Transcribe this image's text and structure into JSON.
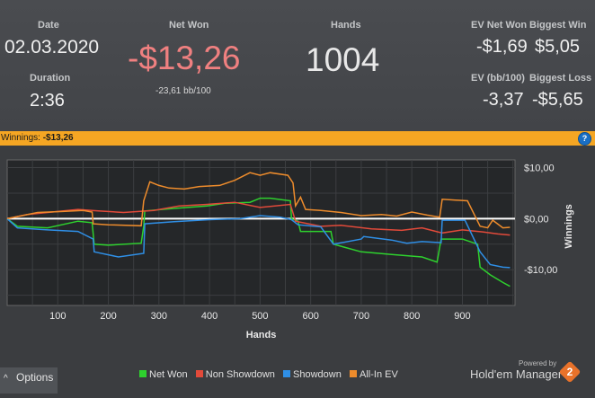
{
  "stats": {
    "date": {
      "label": "Date",
      "value": "02.03.2020"
    },
    "duration": {
      "label": "Duration",
      "value": "2:36"
    },
    "net_won": {
      "label": "Net Won",
      "value": "-$13,26",
      "sub": "-23,61 bb/100"
    },
    "hands": {
      "label": "Hands",
      "value": "1004"
    },
    "ev_net_won": {
      "label": "EV Net Won",
      "value": "-$1,69"
    },
    "biggest_win": {
      "label": "Biggest Win",
      "value": "$5,05"
    },
    "ev_bb100": {
      "label": "EV (bb/100)",
      "value": "-3,37"
    },
    "biggest_loss": {
      "label": "Biggest Loss",
      "value": "-$5,65"
    }
  },
  "winnings_bar": {
    "label": "Winnings:",
    "value": "-$13,26",
    "help": "?"
  },
  "options_label": "Options",
  "options_arrow": "^",
  "branding": {
    "powered": "Powered by",
    "name": "Hold'em Manager",
    "version": "2"
  },
  "colors": {
    "net_won": "#2ed12e",
    "non_showdown": "#e24a3a",
    "showdown": "#2f8fe6",
    "allin_ev": "#ee8c2c",
    "loss": "#f08080",
    "accent": "#f5a623"
  },
  "chart_data": {
    "type": "line",
    "title": "",
    "xlabel": "Hands",
    "ylabel": "Winnings",
    "xlim": [
      0,
      1004
    ],
    "ylim": [
      -17,
      11.5
    ],
    "xticks": [
      100,
      200,
      300,
      400,
      500,
      600,
      700,
      800,
      900
    ],
    "yticks": [
      {
        "v": 10,
        "label": "$10,00"
      },
      {
        "v": 0,
        "label": "$0,00"
      },
      {
        "v": -10,
        "label": "-$10,00"
      }
    ],
    "grid": true,
    "series": [
      {
        "name": "Net Won",
        "color": "#2ed12e",
        "points": [
          [
            0,
            0
          ],
          [
            20,
            -1.5
          ],
          [
            80,
            -1.8
          ],
          [
            140,
            -0.5
          ],
          [
            168,
            -0.8
          ],
          [
            172,
            -5
          ],
          [
            200,
            -5.2
          ],
          [
            265,
            -4.8
          ],
          [
            270,
            -1.5
          ],
          [
            272,
            1.5
          ],
          [
            330,
            2
          ],
          [
            395,
            2.5
          ],
          [
            430,
            3
          ],
          [
            480,
            3.2
          ],
          [
            500,
            4
          ],
          [
            520,
            4
          ],
          [
            560,
            3.5
          ],
          [
            562,
            0
          ],
          [
            575,
            -0.5
          ],
          [
            580,
            -2.5
          ],
          [
            640,
            -2.5
          ],
          [
            645,
            -5
          ],
          [
            700,
            -6.5
          ],
          [
            760,
            -7
          ],
          [
            820,
            -7.5
          ],
          [
            850,
            -8.5
          ],
          [
            858,
            -4
          ],
          [
            900,
            -4
          ],
          [
            930,
            -5
          ],
          [
            935,
            -9.5
          ],
          [
            955,
            -11
          ],
          [
            980,
            -12.5
          ],
          [
            994,
            -13.26
          ]
        ]
      },
      {
        "name": "Non Showdown",
        "color": "#e24a3a",
        "points": [
          [
            0,
            0
          ],
          [
            40,
            0.8
          ],
          [
            80,
            1.2
          ],
          [
            140,
            1.8
          ],
          [
            180,
            1.5
          ],
          [
            230,
            1.2
          ],
          [
            290,
            1.6
          ],
          [
            340,
            2.5
          ],
          [
            395,
            2.8
          ],
          [
            450,
            3.2
          ],
          [
            500,
            2.2
          ],
          [
            560,
            2.8
          ],
          [
            570,
            -0.5
          ],
          [
            620,
            -1.5
          ],
          [
            660,
            -1.3
          ],
          [
            720,
            -2
          ],
          [
            780,
            -2.3
          ],
          [
            820,
            -1.8
          ],
          [
            860,
            -2.8
          ],
          [
            900,
            -2.2
          ],
          [
            940,
            -2.6
          ],
          [
            970,
            -3
          ],
          [
            994,
            -3.2
          ]
        ]
      },
      {
        "name": "Showdown",
        "color": "#2f8fe6",
        "points": [
          [
            0,
            0
          ],
          [
            20,
            -1.8
          ],
          [
            80,
            -2.2
          ],
          [
            140,
            -2.5
          ],
          [
            170,
            -4
          ],
          [
            172,
            -6.5
          ],
          [
            220,
            -7.5
          ],
          [
            270,
            -6.8
          ],
          [
            272,
            -1
          ],
          [
            330,
            -0.6
          ],
          [
            400,
            -0.2
          ],
          [
            460,
            0
          ],
          [
            500,
            0.6
          ],
          [
            540,
            0.3
          ],
          [
            562,
            -0.2
          ],
          [
            575,
            -1.2
          ],
          [
            620,
            -1.6
          ],
          [
            645,
            -5
          ],
          [
            700,
            -4
          ],
          [
            705,
            -3.5
          ],
          [
            760,
            -4.2
          ],
          [
            790,
            -4.8
          ],
          [
            820,
            -4.5
          ],
          [
            858,
            -4.7
          ],
          [
            860,
            -0.3
          ],
          [
            905,
            -0.3
          ],
          [
            935,
            -6.5
          ],
          [
            955,
            -9
          ],
          [
            980,
            -9.5
          ],
          [
            994,
            -9.6
          ]
        ]
      },
      {
        "name": "All-In EV",
        "color": "#ee8c2c",
        "points": [
          [
            0,
            0
          ],
          [
            60,
            1.2
          ],
          [
            110,
            1.4
          ],
          [
            150,
            1.6
          ],
          [
            168,
            1.3
          ],
          [
            170,
            -1
          ],
          [
            200,
            -1.2
          ],
          [
            265,
            -1.4
          ],
          [
            270,
            3.5
          ],
          [
            282,
            7.2
          ],
          [
            300,
            6.5
          ],
          [
            320,
            6
          ],
          [
            350,
            5.8
          ],
          [
            380,
            6.3
          ],
          [
            420,
            6.5
          ],
          [
            450,
            7.5
          ],
          [
            480,
            9
          ],
          [
            500,
            8.5
          ],
          [
            520,
            9
          ],
          [
            555,
            8.5
          ],
          [
            565,
            7
          ],
          [
            570,
            2.5
          ],
          [
            580,
            4.2
          ],
          [
            590,
            1.8
          ],
          [
            620,
            1.6
          ],
          [
            660,
            1.2
          ],
          [
            700,
            0.6
          ],
          [
            740,
            0.8
          ],
          [
            770,
            0.5
          ],
          [
            800,
            1.3
          ],
          [
            830,
            0.7
          ],
          [
            855,
            0.3
          ],
          [
            860,
            3.8
          ],
          [
            910,
            3.5
          ],
          [
            935,
            -1.5
          ],
          [
            950,
            -1.8
          ],
          [
            960,
            -0.3
          ],
          [
            980,
            -1.8
          ],
          [
            994,
            -1.69
          ]
        ]
      }
    ]
  }
}
